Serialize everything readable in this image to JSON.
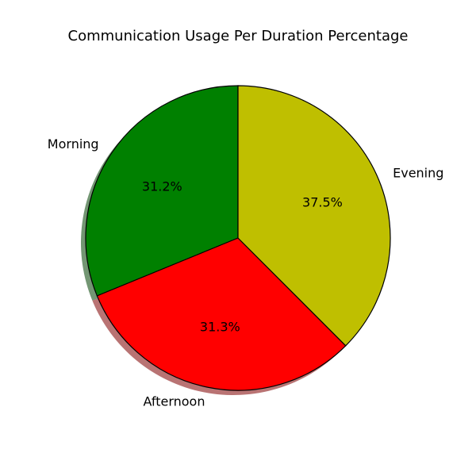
{
  "chart_data": {
    "type": "pie",
    "title": "Communication Usage Per Duration Percentage",
    "categories": [
      "Morning",
      "Afternoon",
      "Evening"
    ],
    "values": [
      31.2,
      31.3,
      37.5
    ],
    "value_labels": [
      "31.2%",
      "31.3%",
      "37.5%"
    ],
    "colors": [
      "#008000",
      "#ff0000",
      "#bfbf00"
    ],
    "edge_color": "#000000",
    "shadow": true,
    "start_angle_deg": 90,
    "direction": "counterclockwise"
  }
}
